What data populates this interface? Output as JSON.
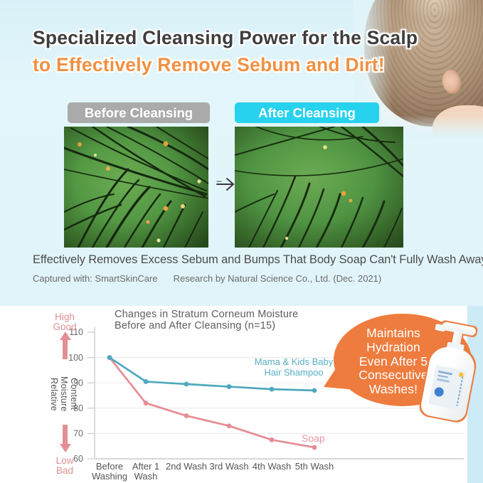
{
  "header": {
    "title_line1": "Specialized Cleansing Power for the Scalp",
    "title_line2": "to Effectively Remove Sebum and Dirt!"
  },
  "comparison": {
    "before_label": "Before Cleansing",
    "after_label": "After Cleansing",
    "icons": {
      "transition_arrow": "→"
    }
  },
  "findings": {
    "main_caption": "Effectively Removes Excess Sebum and Bumps That Body Soap Can't Fully Wash Away.",
    "captured_with": "Captured with: SmartSkinCare",
    "research_credit": "Research by Natural Science Co., Ltd. (Dec. 2021)"
  },
  "chart_data": {
    "type": "line",
    "title": "Changes in Stratum Corneum Moisture Before and After Cleansing (n=15)",
    "title_lines": [
      "Changes in Stratum Corneum Moisture",
      "Before and After Cleansing (n=15)"
    ],
    "categories": [
      [
        "Before",
        "Washing"
      ],
      [
        "After 1",
        "Wash"
      ],
      [
        "2nd Wash"
      ],
      [
        "3rd Wash"
      ],
      [
        "4th Wash"
      ],
      [
        "5th Wash"
      ]
    ],
    "series": [
      {
        "name": "Mama & Kids Baby Hair Shampoo",
        "name_lines": [
          "Mama & Kids Baby",
          "Hair Shampoo"
        ],
        "color": "#4FA8BE",
        "values": [
          100,
          90.5,
          89.5,
          88.5,
          87.5,
          87
        ]
      },
      {
        "name": "Soap",
        "name_lines": [
          "Soap"
        ],
        "color": "#E68C93",
        "values": [
          100,
          82,
          77,
          73,
          67.5,
          64.5
        ]
      }
    ],
    "ylabel": "Relative Moisture Content",
    "ylabel_lines": [
      "Relative Moisture",
      "Content"
    ],
    "yticks": [
      60,
      70,
      80,
      90,
      100,
      110
    ],
    "ylim": [
      60,
      110
    ],
    "axis_top_annotation": [
      "High",
      "Good"
    ],
    "axis_bottom_annotation": [
      "Low",
      "Bad"
    ],
    "grid": "horizontal-only",
    "legend_position": "inline-labels"
  },
  "callout": {
    "lines": [
      "Maintains",
      "Hydration",
      "Even After 5",
      "Consecutive",
      "Washes!"
    ],
    "full_text": "Maintains Hydration Even After 5 Consecutive Washes!"
  },
  "colors": {
    "header_bg": "#E0F4F9",
    "title_text": "#3E3E3E",
    "accent_orange": "#F09143",
    "before_badge_bg": "#A9AAA9",
    "after_badge_bg": "#27D2EF",
    "shampoo_line": "#4FA8BE",
    "soap_line": "#E68C93",
    "pink_annotation": "#E29094",
    "callout_bubble": "#EE7C3E",
    "side_strip": "#CDEAF7"
  }
}
